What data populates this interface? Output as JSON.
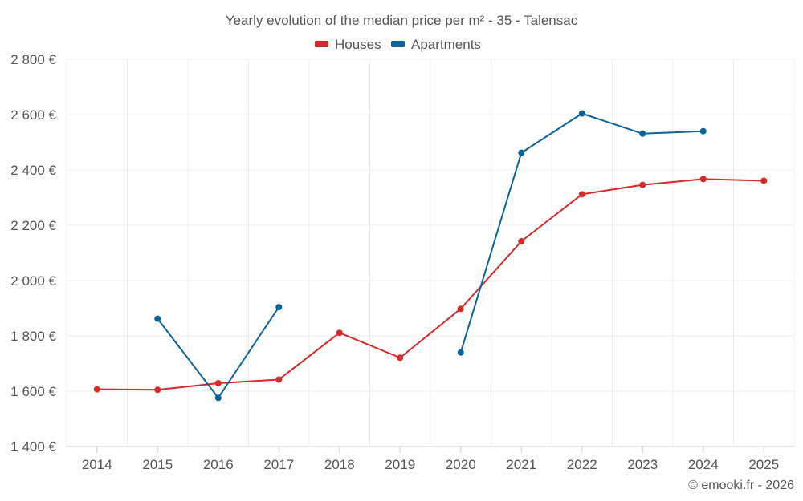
{
  "chart_data": {
    "type": "line",
    "title": "Yearly evolution of the median price per m² - 35 - Talensac",
    "xlabel": "",
    "ylabel": "",
    "categories": [
      "2014",
      "2015",
      "2016",
      "2017",
      "2018",
      "2019",
      "2020",
      "2021",
      "2022",
      "2023",
      "2024",
      "2025"
    ],
    "ylim": [
      1400,
      2800
    ],
    "yticks": [
      1400,
      1600,
      1800,
      2000,
      2200,
      2400,
      2600,
      2800
    ],
    "ytick_labels": [
      "1 400 €",
      "1 600 €",
      "1 800 €",
      "2 000 €",
      "2 200 €",
      "2 400 €",
      "2 600 €",
      "2 800 €"
    ],
    "grid": true,
    "legend_position": "top-center",
    "series": [
      {
        "name": "Houses",
        "color": "#d32a2a",
        "values": [
          1607,
          1605,
          1629,
          1642,
          1811,
          1721,
          1898,
          2142,
          2312,
          2346,
          2367,
          2361
        ]
      },
      {
        "name": "Apartments",
        "color": "#0b6498",
        "values": [
          null,
          1862,
          1576,
          1904,
          null,
          null,
          1740,
          2462,
          2604,
          2531,
          2540,
          null
        ]
      }
    ],
    "credit": "© emooki.fr - 2026"
  }
}
